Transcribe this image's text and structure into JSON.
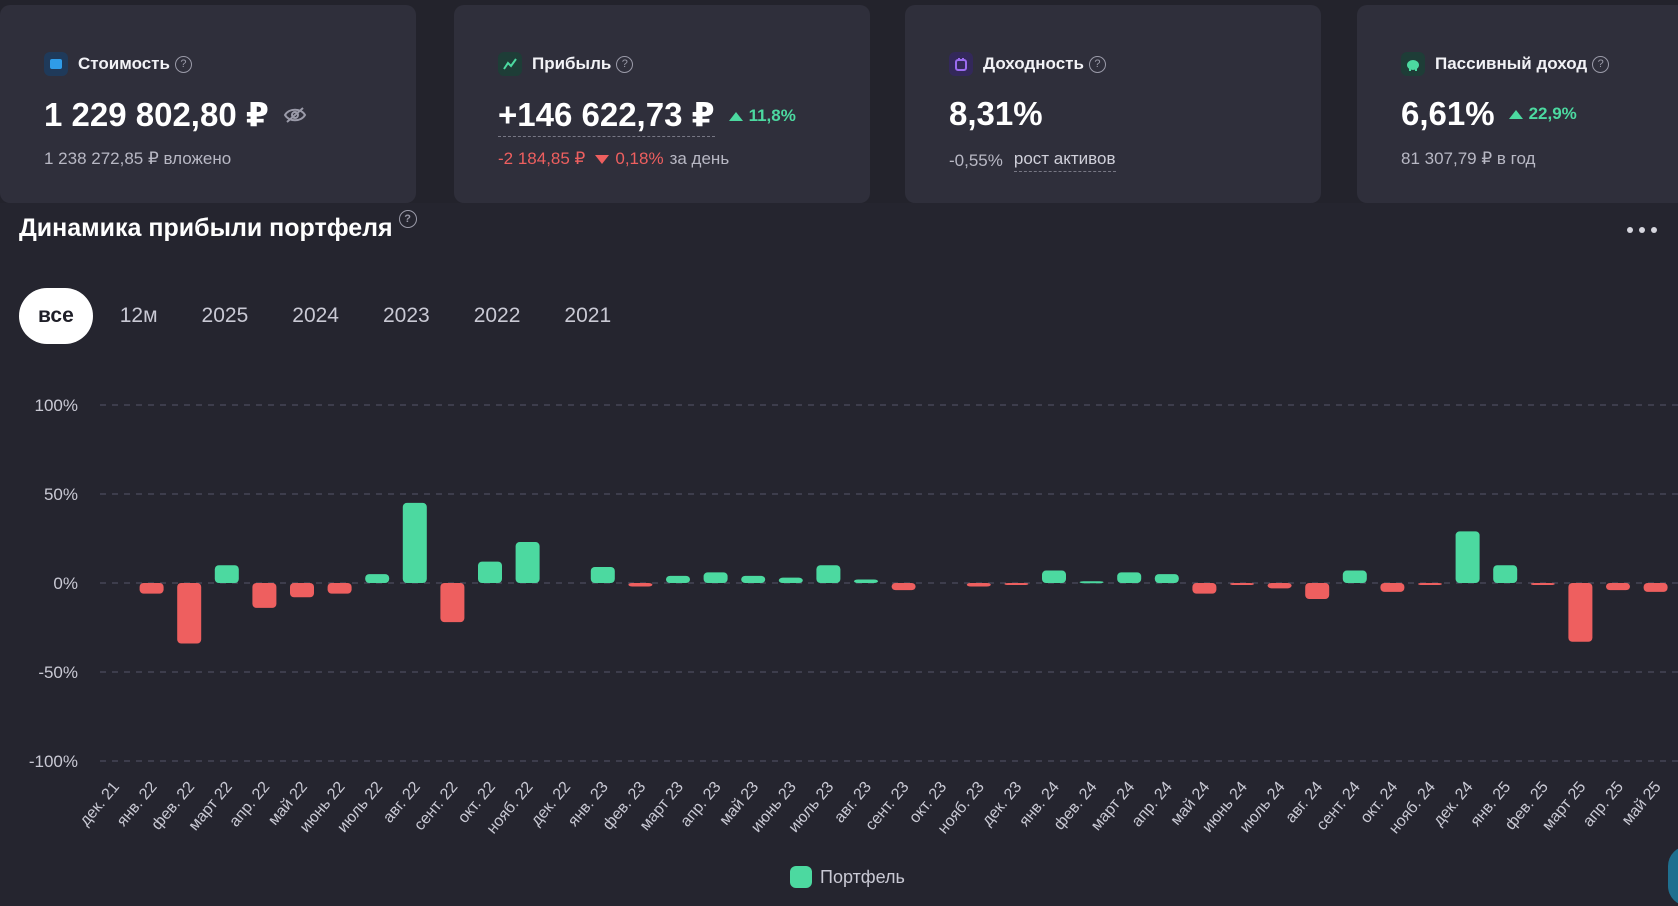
{
  "cards": [
    {
      "title": "Стоимость",
      "icon": "wallet-icon",
      "icon_bg": "#1f3a5a",
      "icon_fg": "#2f9ce8",
      "value": "1 229 802,80 ₽",
      "sub": "1 238 272,85 ₽ вложено"
    },
    {
      "title": "Прибыль",
      "icon": "chart-line-icon",
      "icon_bg": "#1e3d37",
      "icon_fg": "#4cd9a0",
      "value": "+146 622,73 ₽",
      "change_up": "11,8%",
      "day_change": "-2 184,85 ₽",
      "day_pct": "0,18%",
      "day_suffix": "за день"
    },
    {
      "title": "Доходность",
      "icon": "calendar-icon",
      "icon_bg": "#33285a",
      "icon_fg": "#9a6bf0",
      "value": "8,31%",
      "sub_value": "-0,55%",
      "sub_link": "рост активов"
    },
    {
      "title": "Пассивный доход",
      "icon": "piggy-bank-icon",
      "icon_bg": "#1e3d37",
      "icon_fg": "#4cd9a0",
      "value": "6,61%",
      "change_up": "22,9%",
      "sub": "81 307,79 ₽ в год"
    }
  ],
  "section": {
    "title": "Динамика прибыли портфеля",
    "help": "?"
  },
  "tabs": [
    "все",
    "12м",
    "2025",
    "2024",
    "2023",
    "2022",
    "2021"
  ],
  "active_tab": "все",
  "legend": "Портфель",
  "colors": {
    "positive": "#4cd9a0",
    "negative": "#ee5f5f",
    "grid": "#55556a",
    "axis_text": "#c9c9d4"
  },
  "chart_data": {
    "type": "bar",
    "ylim": [
      -100,
      100
    ],
    "yticks": [
      "100%",
      "50%",
      "0%",
      "-50%",
      "-100%"
    ],
    "grid": true,
    "legend_position": "bottom",
    "categories": [
      "дек. 21",
      "янв. 22",
      "фев. 22",
      "март 22",
      "апр. 22",
      "май 22",
      "июнь 22",
      "июль 22",
      "авг. 22",
      "сент. 22",
      "окт. 22",
      "нояб. 22",
      "дек. 22",
      "янв. 23",
      "фев. 23",
      "март 23",
      "апр. 23",
      "май 23",
      "июнь 23",
      "июль 23",
      "авг. 23",
      "сент. 23",
      "окт. 23",
      "нояб. 23",
      "дек. 23",
      "янв. 24",
      "фев. 24",
      "март 24",
      "апр. 24",
      "май 24",
      "июнь 24",
      "июль 24",
      "авг. 24",
      "сент. 24",
      "окт. 24",
      "нояб. 24",
      "дек. 24",
      "янв. 25",
      "фев. 25",
      "март 25",
      "апр. 25",
      "май 25"
    ],
    "series": [
      {
        "name": "Портфель",
        "values": [
          0,
          -6,
          -34,
          10,
          -14,
          -8,
          -6,
          5,
          45,
          -22,
          12,
          23,
          0,
          9,
          -2,
          4,
          6,
          4,
          3,
          10,
          2,
          -4,
          0,
          -2,
          -1,
          7,
          1,
          6,
          5,
          -6,
          -1,
          -3,
          -9,
          7,
          -5,
          -1,
          29,
          10,
          -1,
          -33,
          -4,
          -5
        ]
      }
    ]
  }
}
